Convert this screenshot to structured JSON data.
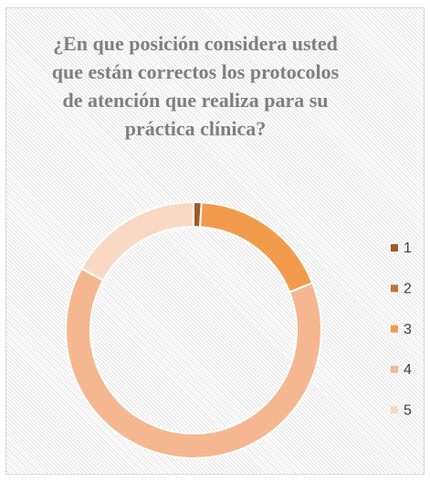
{
  "chart_data": {
    "type": "donut",
    "title": "¿En que posición considera usted que están correctos los protocolos de atención que realiza para su práctica clínica?",
    "categories": [
      "1",
      "2",
      "3",
      "4",
      "5"
    ],
    "values": [
      1,
      0,
      18,
      64,
      17
    ],
    "colors": [
      "#a0592a",
      "#c8722f",
      "#f29b4c",
      "#f5b78f",
      "#f9d8c4"
    ],
    "legend": "right"
  }
}
